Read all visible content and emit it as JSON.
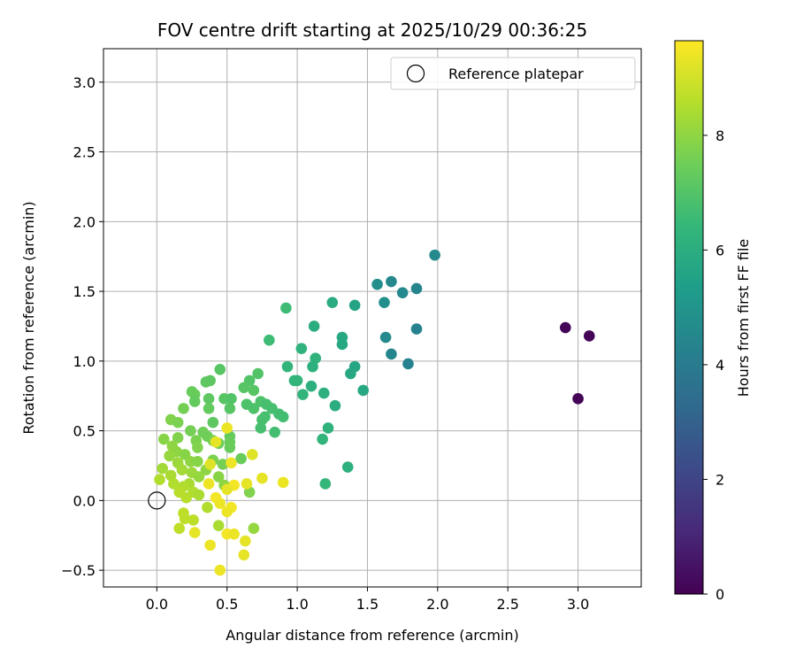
{
  "chart_data": {
    "type": "scatter",
    "title": "FOV centre drift starting at 2025/10/29 00:36:25",
    "xlabel": "Angular distance from reference (arcmin)",
    "ylabel": "Rotation from reference (arcmin)",
    "xlim": [
      -0.38,
      3.45
    ],
    "ylim": [
      -0.62,
      3.24
    ],
    "xticks": [
      0.0,
      0.5,
      1.0,
      1.5,
      2.0,
      2.5,
      3.0
    ],
    "xtick_labels": [
      "0.0",
      "0.5",
      "1.0",
      "1.5",
      "2.0",
      "2.5",
      "3.0"
    ],
    "yticks": [
      -0.5,
      0.0,
      0.5,
      1.0,
      1.5,
      2.0,
      2.5,
      3.0
    ],
    "ytick_labels": [
      "−0.5",
      "0.0",
      "0.5",
      "1.0",
      "1.5",
      "2.0",
      "2.5",
      "3.0"
    ],
    "grid": true,
    "legend": {
      "position": "top-right",
      "label": "Reference platepar"
    },
    "reference_point": {
      "x": 0.0,
      "y": 0.0
    },
    "colorbar": {
      "label": "Hours from first FF file",
      "range": [
        0,
        9.65
      ],
      "ticks": [
        0,
        2,
        4,
        6,
        8
      ],
      "tick_labels": [
        "0",
        "2",
        "4",
        "6",
        "8"
      ],
      "colormap": [
        "#440154",
        "#482878",
        "#3e4989",
        "#31688e",
        "#26828e",
        "#1f9e89",
        "#35b779",
        "#6ece58",
        "#b5de2b",
        "#fde725"
      ]
    },
    "points": [
      {
        "x": 2.91,
        "y": 1.24,
        "c": 0.1
      },
      {
        "x": 3.08,
        "y": 1.18,
        "c": 0.1
      },
      {
        "x": 3.0,
        "y": 0.73,
        "c": 0.1
      },
      {
        "x": 1.98,
        "y": 1.76,
        "c": 4.6
      },
      {
        "x": 1.67,
        "y": 1.57,
        "c": 4.5
      },
      {
        "x": 1.75,
        "y": 1.49,
        "c": 4.5
      },
      {
        "x": 1.85,
        "y": 1.52,
        "c": 4.4
      },
      {
        "x": 1.85,
        "y": 1.23,
        "c": 4.3
      },
      {
        "x": 1.63,
        "y": 1.17,
        "c": 4.6
      },
      {
        "x": 1.67,
        "y": 1.05,
        "c": 4.4
      },
      {
        "x": 1.79,
        "y": 0.98,
        "c": 4.3
      },
      {
        "x": 1.57,
        "y": 1.55,
        "c": 4.8
      },
      {
        "x": 1.62,
        "y": 1.42,
        "c": 4.8
      },
      {
        "x": 1.41,
        "y": 1.4,
        "c": 5.6
      },
      {
        "x": 1.25,
        "y": 1.42,
        "c": 5.9
      },
      {
        "x": 1.12,
        "y": 1.25,
        "c": 6.0
      },
      {
        "x": 1.32,
        "y": 1.17,
        "c": 5.8
      },
      {
        "x": 1.32,
        "y": 1.12,
        "c": 5.8
      },
      {
        "x": 0.92,
        "y": 1.38,
        "c": 6.6
      },
      {
        "x": 0.8,
        "y": 1.15,
        "c": 6.6
      },
      {
        "x": 1.03,
        "y": 1.09,
        "c": 6.2
      },
      {
        "x": 1.13,
        "y": 1.02,
        "c": 6.2
      },
      {
        "x": 1.11,
        "y": 0.96,
        "c": 6.1
      },
      {
        "x": 0.93,
        "y": 0.96,
        "c": 6.3
      },
      {
        "x": 1.41,
        "y": 0.96,
        "c": 5.7
      },
      {
        "x": 1.38,
        "y": 0.91,
        "c": 5.8
      },
      {
        "x": 1.47,
        "y": 0.79,
        "c": 5.8
      },
      {
        "x": 0.98,
        "y": 0.86,
        "c": 6.3
      },
      {
        "x": 1.0,
        "y": 0.86,
        "c": 6.3
      },
      {
        "x": 1.1,
        "y": 0.82,
        "c": 6.1
      },
      {
        "x": 1.19,
        "y": 0.77,
        "c": 6.1
      },
      {
        "x": 1.04,
        "y": 0.76,
        "c": 6.3
      },
      {
        "x": 1.27,
        "y": 0.68,
        "c": 6.0
      },
      {
        "x": 1.22,
        "y": 0.52,
        "c": 6.2
      },
      {
        "x": 1.18,
        "y": 0.44,
        "c": 6.3
      },
      {
        "x": 1.36,
        "y": 0.24,
        "c": 6.1
      },
      {
        "x": 1.2,
        "y": 0.12,
        "c": 6.4
      },
      {
        "x": 0.45,
        "y": 0.94,
        "c": 7.1
      },
      {
        "x": 0.72,
        "y": 0.91,
        "c": 7.0
      },
      {
        "x": 0.66,
        "y": 0.86,
        "c": 7.0
      },
      {
        "x": 0.38,
        "y": 0.86,
        "c": 7.2
      },
      {
        "x": 0.35,
        "y": 0.85,
        "c": 7.2
      },
      {
        "x": 0.62,
        "y": 0.81,
        "c": 7.1
      },
      {
        "x": 0.69,
        "y": 0.79,
        "c": 7.1
      },
      {
        "x": 0.25,
        "y": 0.78,
        "c": 7.4
      },
      {
        "x": 0.27,
        "y": 0.76,
        "c": 7.4
      },
      {
        "x": 0.37,
        "y": 0.73,
        "c": 7.2
      },
      {
        "x": 0.48,
        "y": 0.73,
        "c": 7.1
      },
      {
        "x": 0.53,
        "y": 0.73,
        "c": 7.0
      },
      {
        "x": 0.27,
        "y": 0.71,
        "c": 7.3
      },
      {
        "x": 0.74,
        "y": 0.71,
        "c": 6.9
      },
      {
        "x": 0.64,
        "y": 0.69,
        "c": 6.9
      },
      {
        "x": 0.78,
        "y": 0.69,
        "c": 6.8
      },
      {
        "x": 0.19,
        "y": 0.66,
        "c": 7.6
      },
      {
        "x": 0.37,
        "y": 0.66,
        "c": 7.3
      },
      {
        "x": 0.52,
        "y": 0.66,
        "c": 7.1
      },
      {
        "x": 0.69,
        "y": 0.66,
        "c": 6.9
      },
      {
        "x": 0.82,
        "y": 0.66,
        "c": 6.8
      },
      {
        "x": 0.87,
        "y": 0.62,
        "c": 6.7
      },
      {
        "x": 0.9,
        "y": 0.6,
        "c": 6.7
      },
      {
        "x": 0.77,
        "y": 0.6,
        "c": 6.8
      },
      {
        "x": 0.75,
        "y": 0.58,
        "c": 6.8
      },
      {
        "x": 0.1,
        "y": 0.58,
        "c": 7.8
      },
      {
        "x": 0.15,
        "y": 0.56,
        "c": 7.7
      },
      {
        "x": 0.4,
        "y": 0.56,
        "c": 7.2
      },
      {
        "x": 0.74,
        "y": 0.52,
        "c": 6.8
      },
      {
        "x": 0.84,
        "y": 0.49,
        "c": 6.7
      },
      {
        "x": 0.24,
        "y": 0.5,
        "c": 7.6
      },
      {
        "x": 0.33,
        "y": 0.49,
        "c": 7.5
      },
      {
        "x": 0.36,
        "y": 0.46,
        "c": 7.5
      },
      {
        "x": 0.52,
        "y": 0.46,
        "c": 7.3
      },
      {
        "x": 0.05,
        "y": 0.44,
        "c": 7.9
      },
      {
        "x": 0.15,
        "y": 0.45,
        "c": 7.8
      },
      {
        "x": 0.28,
        "y": 0.43,
        "c": 7.7
      },
      {
        "x": 0.4,
        "y": 0.43,
        "c": 7.6
      },
      {
        "x": 0.52,
        "y": 0.42,
        "c": 7.4
      },
      {
        "x": 0.44,
        "y": 0.41,
        "c": 7.5
      },
      {
        "x": 0.11,
        "y": 0.39,
        "c": 8.0
      },
      {
        "x": 0.29,
        "y": 0.38,
        "c": 7.8
      },
      {
        "x": 0.52,
        "y": 0.38,
        "c": 7.4
      },
      {
        "x": 0.14,
        "y": 0.35,
        "c": 8.0
      },
      {
        "x": 0.2,
        "y": 0.33,
        "c": 7.9
      },
      {
        "x": 0.09,
        "y": 0.32,
        "c": 8.1
      },
      {
        "x": 0.6,
        "y": 0.3,
        "c": 7.4
      },
      {
        "x": 0.4,
        "y": 0.29,
        "c": 7.7
      },
      {
        "x": 0.24,
        "y": 0.28,
        "c": 8.0
      },
      {
        "x": 0.29,
        "y": 0.28,
        "c": 7.9
      },
      {
        "x": 0.15,
        "y": 0.27,
        "c": 8.2
      },
      {
        "x": 0.47,
        "y": 0.26,
        "c": 7.6
      },
      {
        "x": 0.04,
        "y": 0.23,
        "c": 8.3
      },
      {
        "x": 0.18,
        "y": 0.22,
        "c": 8.3
      },
      {
        "x": 0.35,
        "y": 0.22,
        "c": 8.0
      },
      {
        "x": 0.25,
        "y": 0.2,
        "c": 8.2
      },
      {
        "x": 0.1,
        "y": 0.18,
        "c": 8.4
      },
      {
        "x": 0.3,
        "y": 0.17,
        "c": 8.1
      },
      {
        "x": 0.02,
        "y": 0.15,
        "c": 8.5
      },
      {
        "x": 0.44,
        "y": 0.17,
        "c": 7.9
      },
      {
        "x": 0.12,
        "y": 0.12,
        "c": 8.5
      },
      {
        "x": 0.23,
        "y": 0.12,
        "c": 8.4
      },
      {
        "x": 0.19,
        "y": 0.1,
        "c": 8.5
      },
      {
        "x": 0.48,
        "y": 0.11,
        "c": 8.0
      },
      {
        "x": 0.16,
        "y": 0.06,
        "c": 8.6
      },
      {
        "x": 0.26,
        "y": 0.06,
        "c": 8.5
      },
      {
        "x": 0.3,
        "y": 0.04,
        "c": 8.4
      },
      {
        "x": 0.21,
        "y": 0.02,
        "c": 8.6
      },
      {
        "x": 0.66,
        "y": 0.06,
        "c": 7.8
      },
      {
        "x": 0.36,
        "y": -0.05,
        "c": 8.5
      },
      {
        "x": 0.19,
        "y": -0.09,
        "c": 8.7
      },
      {
        "x": 0.2,
        "y": -0.13,
        "c": 8.7
      },
      {
        "x": 0.26,
        "y": -0.14,
        "c": 8.7
      },
      {
        "x": 0.16,
        "y": -0.2,
        "c": 8.7
      },
      {
        "x": 0.44,
        "y": -0.18,
        "c": 8.4
      },
      {
        "x": 0.69,
        "y": -0.2,
        "c": 8.1
      },
      {
        "x": 0.5,
        "y": 0.52,
        "c": 9.4
      },
      {
        "x": 0.42,
        "y": 0.42,
        "c": 9.3
      },
      {
        "x": 0.68,
        "y": 0.33,
        "c": 9.2
      },
      {
        "x": 0.53,
        "y": 0.27,
        "c": 9.4
      },
      {
        "x": 0.38,
        "y": 0.26,
        "c": 9.2
      },
      {
        "x": 0.75,
        "y": 0.16,
        "c": 9.3
      },
      {
        "x": 0.9,
        "y": 0.13,
        "c": 9.4
      },
      {
        "x": 0.64,
        "y": 0.12,
        "c": 9.3
      },
      {
        "x": 0.37,
        "y": 0.12,
        "c": 9.4
      },
      {
        "x": 0.55,
        "y": 0.11,
        "c": 9.5
      },
      {
        "x": 0.5,
        "y": 0.08,
        "c": 9.3
      },
      {
        "x": 0.42,
        "y": 0.02,
        "c": 9.5
      },
      {
        "x": 0.45,
        "y": -0.02,
        "c": 9.4
      },
      {
        "x": 0.53,
        "y": -0.05,
        "c": 9.5
      },
      {
        "x": 0.5,
        "y": -0.08,
        "c": 9.4
      },
      {
        "x": 0.27,
        "y": -0.23,
        "c": 9.3
      },
      {
        "x": 0.5,
        "y": -0.24,
        "c": 9.5
      },
      {
        "x": 0.55,
        "y": -0.24,
        "c": 9.4
      },
      {
        "x": 0.63,
        "y": -0.29,
        "c": 9.3
      },
      {
        "x": 0.38,
        "y": -0.32,
        "c": 9.4
      },
      {
        "x": 0.62,
        "y": -0.39,
        "c": 9.3
      },
      {
        "x": 0.45,
        "y": -0.5,
        "c": 9.4
      }
    ]
  }
}
